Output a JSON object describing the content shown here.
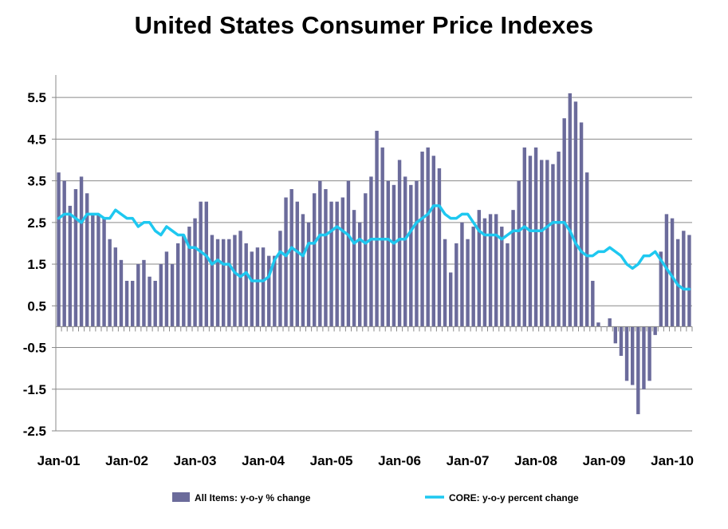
{
  "chart_data": {
    "type": "bar",
    "title": "United States Consumer Price Indexes",
    "xlabel": "",
    "ylabel": "",
    "ylim": [
      -2.5,
      6.0
    ],
    "y_ticks": [
      "5.5",
      "4.5",
      "3.5",
      "2.5",
      "1.5",
      "0.5",
      "-0.5",
      "-1.5",
      "-2.5"
    ],
    "x_tick_labels": [
      "Jan-01",
      "Jan-02",
      "Jan-03",
      "Jan-04",
      "Jan-05",
      "Jan-06",
      "Jan-07",
      "Jan-08",
      "Jan-09",
      "Jan-10"
    ],
    "grid": "horizontal",
    "legend_position": "bottom",
    "series": [
      {
        "name": "All Items: y-o-y % change",
        "type": "bar",
        "color": "#6b6b9b",
        "values": [
          3.7,
          3.5,
          2.9,
          3.3,
          3.6,
          3.2,
          2.7,
          2.7,
          2.6,
          2.1,
          1.9,
          1.6,
          1.1,
          1.1,
          1.5,
          1.6,
          1.2,
          1.1,
          1.5,
          1.8,
          1.5,
          2.0,
          2.2,
          2.4,
          2.6,
          3.0,
          3.0,
          2.2,
          2.1,
          2.1,
          2.1,
          2.2,
          2.3,
          2.0,
          1.8,
          1.9,
          1.9,
          1.7,
          1.7,
          2.3,
          3.1,
          3.3,
          3.0,
          2.7,
          2.5,
          3.2,
          3.5,
          3.3,
          3.0,
          3.0,
          3.1,
          3.5,
          2.8,
          2.5,
          3.2,
          3.6,
          4.7,
          4.3,
          3.5,
          3.4,
          4.0,
          3.6,
          3.4,
          3.5,
          4.2,
          4.3,
          4.1,
          3.8,
          2.1,
          1.3,
          2.0,
          2.5,
          2.1,
          2.4,
          2.8,
          2.6,
          2.7,
          2.7,
          2.4,
          2.0,
          2.8,
          3.5,
          4.3,
          4.1,
          4.3,
          4.0,
          4.0,
          3.9,
          4.2,
          5.0,
          5.6,
          5.4,
          4.9,
          3.7,
          1.1,
          0.1,
          0.0,
          0.2,
          -0.4,
          -0.7,
          -1.3,
          -1.4,
          -2.1,
          -1.5,
          -1.3,
          -0.2,
          1.8,
          2.7,
          2.6,
          2.1,
          2.3,
          2.2
        ]
      },
      {
        "name": "CORE: y-o-y percent change",
        "type": "line",
        "color": "#1ec8f0",
        "values": [
          2.6,
          2.7,
          2.7,
          2.6,
          2.5,
          2.7,
          2.7,
          2.7,
          2.6,
          2.6,
          2.8,
          2.7,
          2.6,
          2.6,
          2.4,
          2.5,
          2.5,
          2.3,
          2.2,
          2.4,
          2.3,
          2.2,
          2.2,
          1.9,
          1.9,
          1.8,
          1.7,
          1.5,
          1.6,
          1.5,
          1.5,
          1.3,
          1.2,
          1.3,
          1.1,
          1.1,
          1.1,
          1.2,
          1.6,
          1.8,
          1.7,
          1.9,
          1.8,
          1.7,
          2.0,
          2.0,
          2.2,
          2.2,
          2.3,
          2.4,
          2.3,
          2.2,
          2.0,
          2.1,
          2.0,
          2.1,
          2.1,
          2.1,
          2.1,
          2.0,
          2.1,
          2.1,
          2.3,
          2.5,
          2.6,
          2.7,
          2.9,
          2.9,
          2.7,
          2.6,
          2.6,
          2.7,
          2.7,
          2.5,
          2.3,
          2.2,
          2.2,
          2.2,
          2.1,
          2.2,
          2.3,
          2.3,
          2.4,
          2.3,
          2.3,
          2.3,
          2.4,
          2.5,
          2.5,
          2.5,
          2.3,
          2.0,
          1.8,
          1.7,
          1.7,
          1.8,
          1.8,
          1.9,
          1.8,
          1.7,
          1.5,
          1.4,
          1.5,
          1.7,
          1.7,
          1.8,
          1.6,
          1.4,
          1.2,
          1.0,
          0.9,
          0.9
        ]
      }
    ]
  }
}
